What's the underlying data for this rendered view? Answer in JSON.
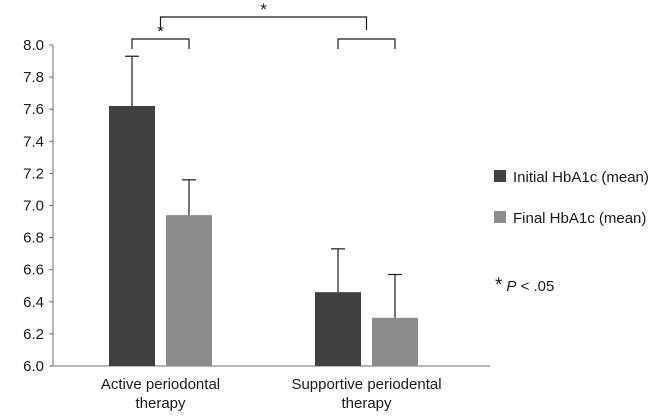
{
  "chart_data": {
    "type": "bar",
    "categories": [
      [
        "Active periodontal",
        "therapy"
      ],
      [
        "Supportive periodental",
        "therapy"
      ]
    ],
    "series": [
      {
        "name": "Initial HbA1c (mean)",
        "color": "#404040",
        "values": [
          7.62,
          6.46
        ],
        "error_upper": [
          7.93,
          6.73
        ]
      },
      {
        "name": "Final HbA1c (mean)",
        "color": "#8c8c8c",
        "values": [
          6.94,
          6.3
        ],
        "error_upper": [
          7.16,
          6.57
        ]
      }
    ],
    "ylim": [
      6.0,
      8.0
    ],
    "yticks": [
      "6.0",
      "6.2",
      "6.4",
      "6.6",
      "6.8",
      "7.0",
      "7.2",
      "7.4",
      "7.6",
      "7.8",
      "8.0"
    ],
    "grid": false,
    "legend_position": "right",
    "significance_brackets": [
      {
        "between": "Active periodontal therapy: Initial vs Final",
        "label": "*"
      },
      {
        "between": "Active periodontal therapy vs Supportive periodental therapy",
        "label": "*"
      },
      {
        "between": "Supportive periodental therapy: Initial vs Final",
        "label": ""
      }
    ],
    "legend_note": {
      "star": "*",
      "p": "P",
      "rest": " < .05"
    }
  }
}
